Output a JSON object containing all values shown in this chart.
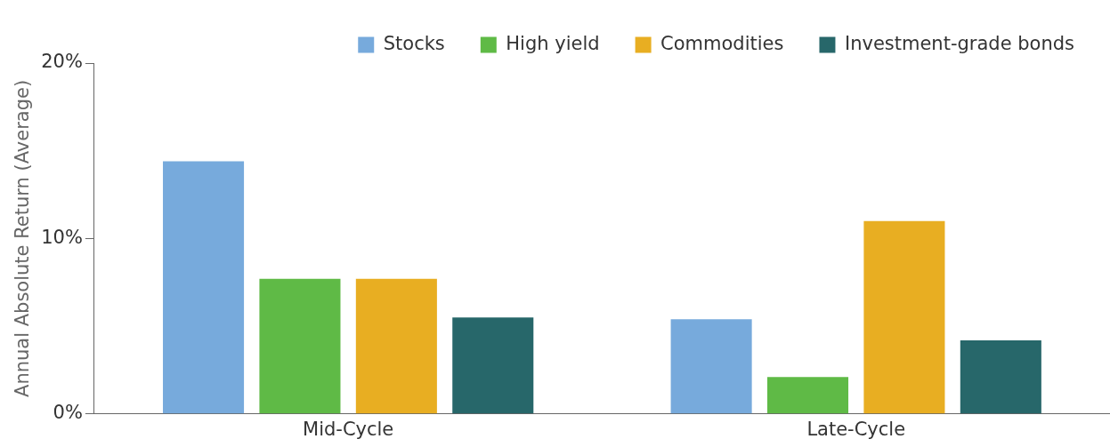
{
  "chart_data": {
    "type": "bar",
    "ylabel": "Annual Absolute Return (Average)",
    "categories": [
      "Mid-Cycle",
      "Late-Cycle"
    ],
    "series": [
      {
        "name": "Stocks",
        "color": "#77aadc",
        "values": [
          14.4,
          5.4
        ]
      },
      {
        "name": "High yield",
        "color": "#5fba46",
        "values": [
          7.7,
          2.1
        ]
      },
      {
        "name": "Commodities",
        "color": "#e8ae22",
        "values": [
          7.7,
          11.0
        ]
      },
      {
        "name": "Investment-grade bonds",
        "color": "#27676a",
        "values": [
          5.5,
          4.2
        ]
      }
    ],
    "ylim": [
      0,
      20
    ],
    "yticks": [
      {
        "value": 0,
        "label": "0%"
      },
      {
        "value": 10,
        "label": "10%"
      },
      {
        "value": 20,
        "label": "20%"
      }
    ],
    "grid": false,
    "legend": "top"
  }
}
